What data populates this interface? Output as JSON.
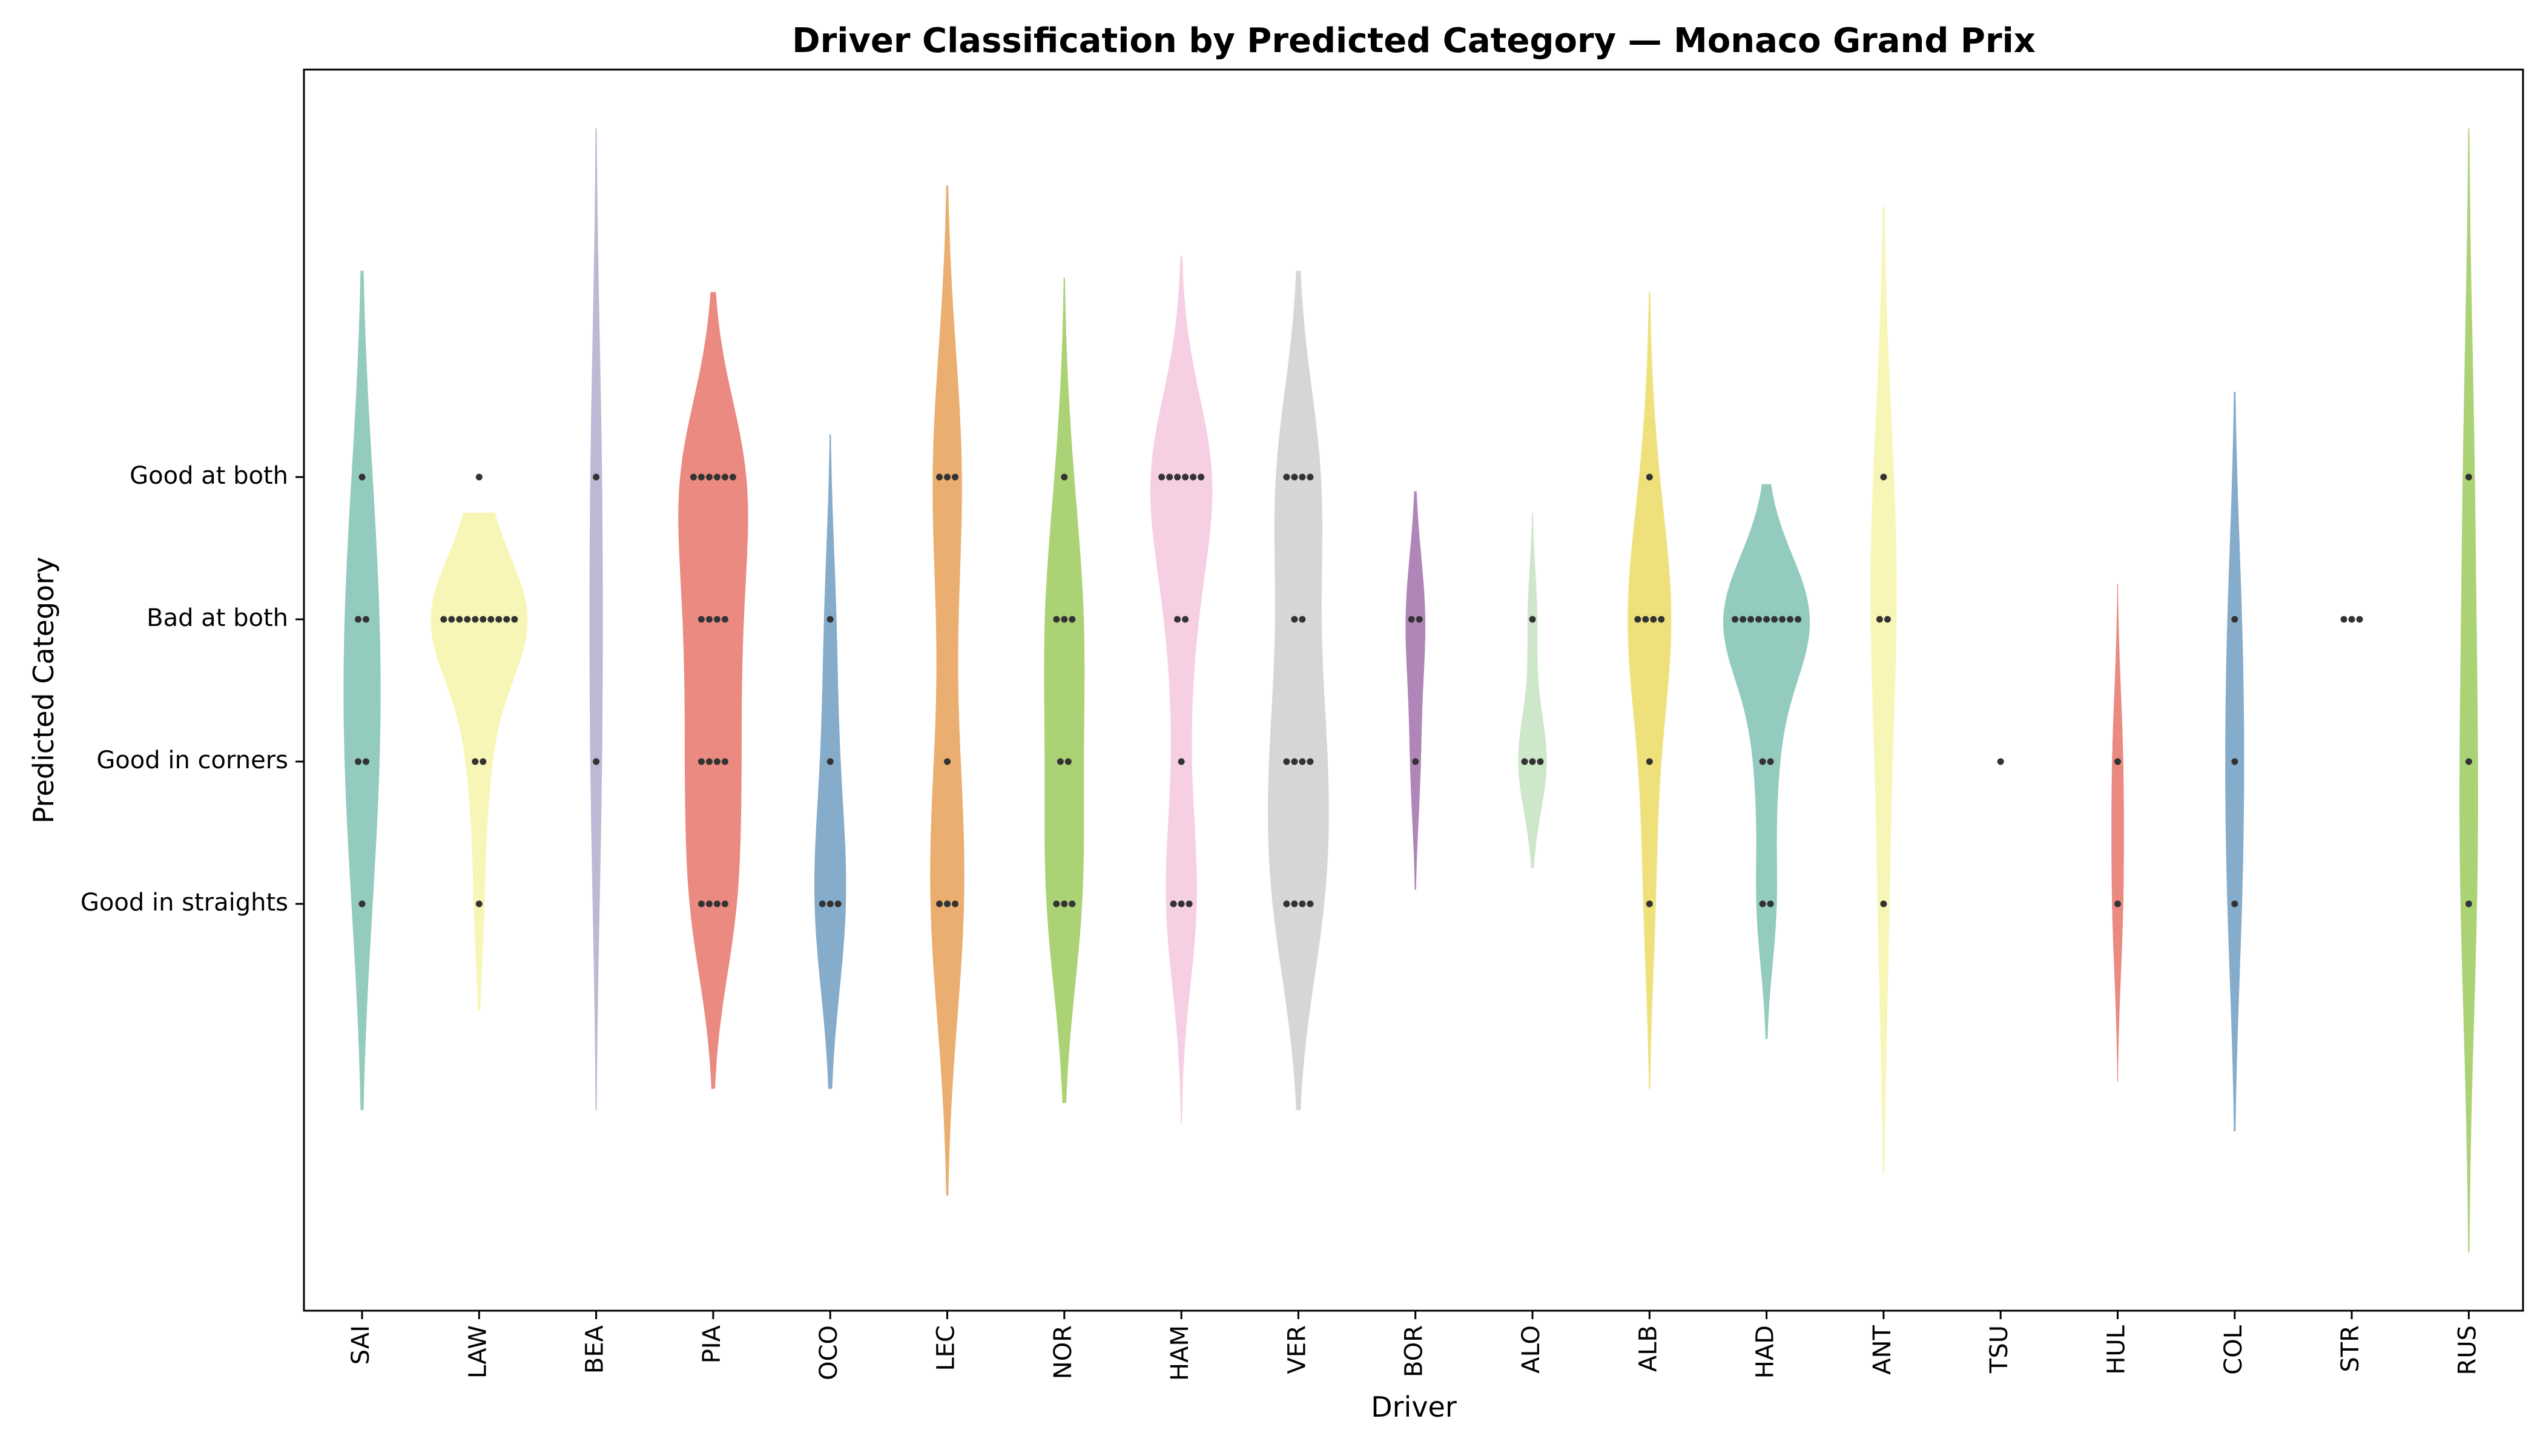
{
  "chart_data": {
    "type": "violin",
    "title": "Driver Classification by Predicted Category — Monaco Grand Prix",
    "xlabel": "Driver",
    "ylabel": "Predicted Category",
    "y_categories": [
      "Good in straights",
      "Good in corners",
      "Bad at both",
      "Good at both"
    ],
    "grid": false,
    "legend": "none",
    "drivers": [
      {
        "name": "SAI",
        "color": "#8DC8BB",
        "counts": [
          1,
          2,
          2,
          1
        ],
        "range": [
          -1.45,
          4.45
        ],
        "bw": 0.9
      },
      {
        "name": "LAW",
        "color": "#F7F5B2",
        "counts": [
          1,
          2,
          10,
          1
        ],
        "range": [
          -0.75,
          2.75
        ],
        "bw": 0.45
      },
      {
        "name": "BEA",
        "color": "#B9B5D2",
        "counts": [
          0,
          1,
          0,
          1
        ],
        "range": [
          -1.45,
          5.45
        ],
        "bw": 1.2
      },
      {
        "name": "PIA",
        "color": "#E9847A",
        "counts": [
          4,
          4,
          4,
          6
        ],
        "range": [
          -1.3,
          4.3
        ],
        "bw": 0.6
      },
      {
        "name": "OCO",
        "color": "#7FA8C8",
        "counts": [
          3,
          1,
          1,
          0
        ],
        "range": [
          -1.3,
          3.3
        ],
        "bw": 0.65
      },
      {
        "name": "LEC",
        "color": "#E9AB68",
        "counts": [
          3,
          1,
          0,
          3
        ],
        "range": [
          -2.05,
          5.05
        ],
        "bw": 0.9
      },
      {
        "name": "NOR",
        "color": "#A8D06F",
        "counts": [
          3,
          2,
          3,
          1
        ],
        "range": [
          -1.4,
          4.4
        ],
        "bw": 0.7
      },
      {
        "name": "HAM",
        "color": "#F5CCE1",
        "counts": [
          3,
          1,
          2,
          6
        ],
        "range": [
          -1.55,
          4.55
        ],
        "bw": 0.6
      },
      {
        "name": "VER",
        "color": "#D4D4D4",
        "counts": [
          4,
          4,
          2,
          4
        ],
        "range": [
          -1.45,
          4.45
        ],
        "bw": 0.7
      },
      {
        "name": "BOR",
        "color": "#AB7FB3",
        "counts": [
          0,
          1,
          2,
          0
        ],
        "range": [
          0.1,
          2.9
        ],
        "bw": 0.45
      },
      {
        "name": "ALO",
        "color": "#CBE5C7",
        "counts": [
          0,
          3,
          1,
          0
        ],
        "range": [
          0.25,
          2.75
        ],
        "bw": 0.35
      },
      {
        "name": "ALB",
        "color": "#EDDF74",
        "counts": [
          1,
          1,
          4,
          1
        ],
        "range": [
          -1.3,
          4.3
        ],
        "bw": 0.65
      },
      {
        "name": "HAD",
        "color": "#8DC8BB",
        "counts": [
          2,
          2,
          9,
          0
        ],
        "range": [
          -0.95,
          2.95
        ],
        "bw": 0.45
      },
      {
        "name": "ANT",
        "color": "#F7F5B2",
        "counts": [
          1,
          0,
          2,
          1
        ],
        "range": [
          -1.9,
          4.9
        ],
        "bw": 1.0
      },
      {
        "name": "TSU",
        "color": "#EEEEEE",
        "counts": [
          0,
          1,
          0,
          0
        ],
        "range": [
          1,
          1
        ],
        "bw": 0.3
      },
      {
        "name": "HUL",
        "color": "#E9847A",
        "counts": [
          1,
          1,
          0,
          0
        ],
        "range": [
          -1.25,
          2.25
        ],
        "bw": 0.55
      },
      {
        "name": "COL",
        "color": "#7FA8C8",
        "counts": [
          1,
          1,
          1,
          0
        ],
        "range": [
          -1.6,
          3.6
        ],
        "bw": 0.85
      },
      {
        "name": "STR",
        "color": "#F7F5B2",
        "counts": [
          0,
          0,
          3,
          0
        ],
        "range": [
          2,
          2
        ],
        "bw": 0.3
      },
      {
        "name": "RUS",
        "color": "#A8D06F",
        "counts": [
          1,
          1,
          0,
          1
        ],
        "range": [
          -2.45,
          5.45
        ],
        "bw": 1.2
      }
    ]
  }
}
